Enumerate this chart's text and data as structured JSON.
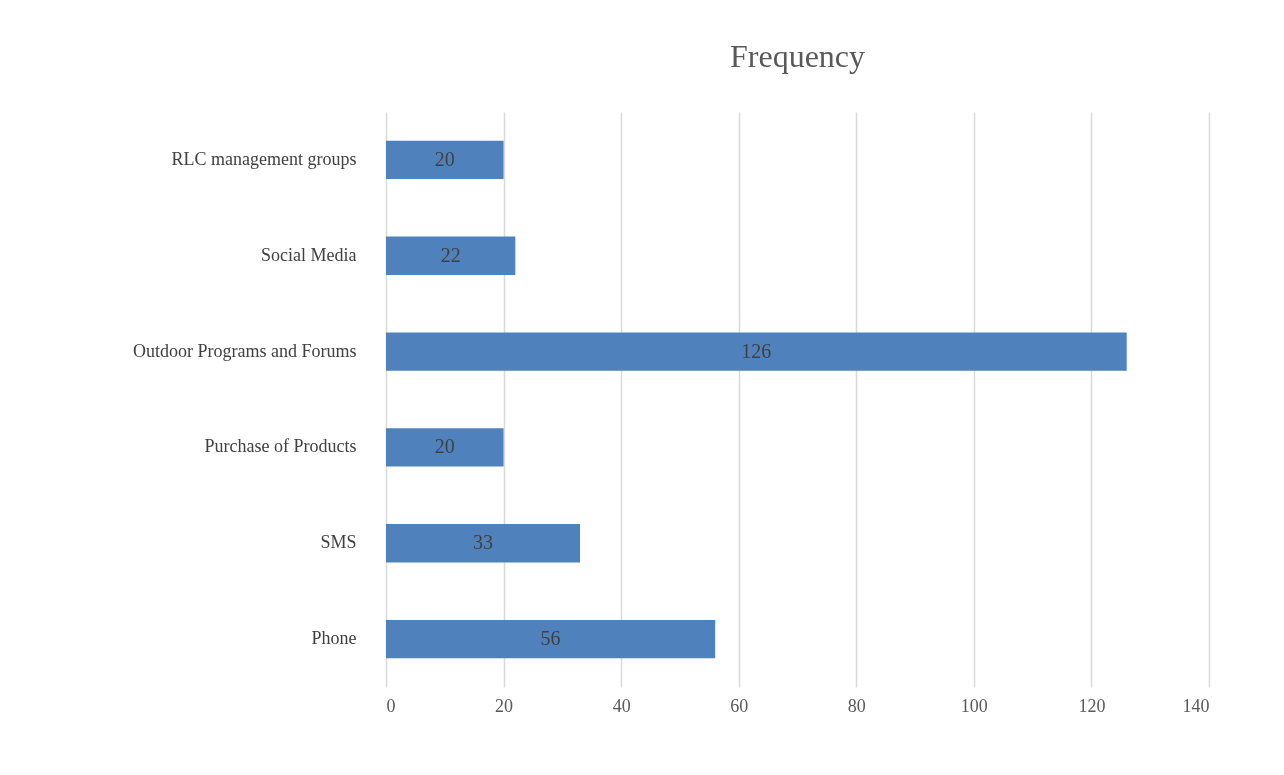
{
  "chart_data": {
    "type": "bar",
    "orientation": "horizontal",
    "title": "Frequency",
    "categories": [
      "RLC management groups",
      "Social Media",
      "Outdoor Programs and Forums",
      "Purchase of Products",
      "SMS",
      "Phone"
    ],
    "values": [
      20,
      22,
      126,
      20,
      33,
      56
    ],
    "color": "#4f81bd",
    "xlim": [
      0,
      140
    ],
    "xticks": [
      0,
      20,
      40,
      60,
      80,
      100,
      120,
      140
    ],
    "grid": "x",
    "data_labels": true
  }
}
